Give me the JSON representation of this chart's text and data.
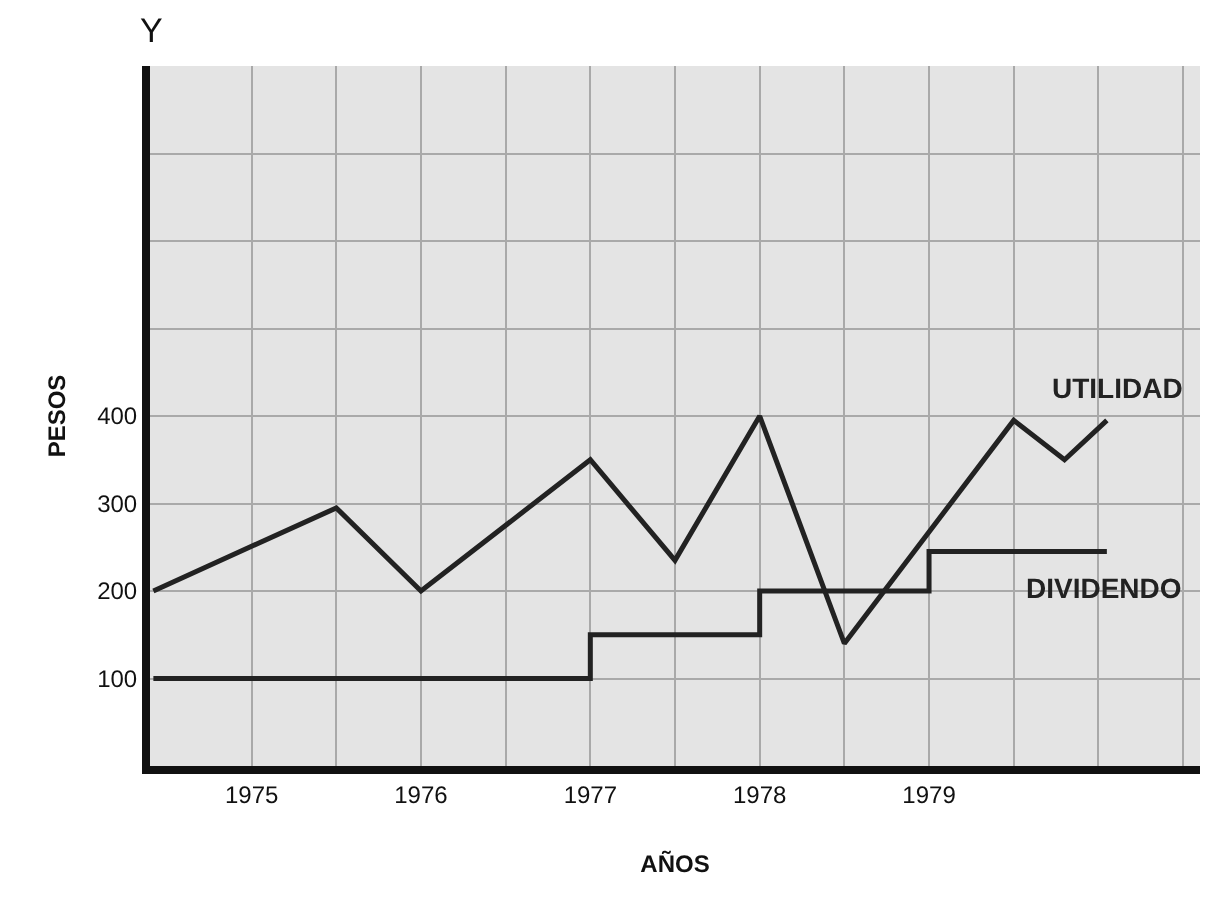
{
  "chart_data": {
    "type": "line",
    "xlabel": "AÑOS",
    "ylabel": "PESOS",
    "annotations": [
      "Y"
    ],
    "xlim": [
      1974.4,
      1980.6
    ],
    "ylim": [
      0,
      800
    ],
    "xticks": [
      {
        "value": 1975,
        "label": "1975"
      },
      {
        "value": 1975.5,
        "label": null
      },
      {
        "value": 1976,
        "label": "1976"
      },
      {
        "value": 1976.5,
        "label": null
      },
      {
        "value": 1977,
        "label": "1977"
      },
      {
        "value": 1977.5,
        "label": null
      },
      {
        "value": 1978,
        "label": "1978"
      },
      {
        "value": 1978.5,
        "label": null
      },
      {
        "value": 1979,
        "label": "1979"
      },
      {
        "value": 1979.5,
        "label": null
      },
      {
        "value": 1980,
        "label": null
      },
      {
        "value": 1980.5,
        "label": null
      }
    ],
    "yticks": [
      100,
      200,
      300,
      400,
      {
        "value": 500,
        "label": null
      },
      {
        "value": 600,
        "label": null
      },
      {
        "value": 700,
        "label": null
      }
    ],
    "grid": true,
    "legend": false,
    "marker": "none",
    "series": [
      {
        "name": "UTILIDAD",
        "color": "#222222",
        "x": [
          1974.42,
          1975.5,
          1976,
          1977,
          1977.5,
          1978,
          1978.5,
          1979.5,
          1979.8,
          1980.05
        ],
        "values": [
          200,
          295,
          200,
          350,
          235,
          400,
          140,
          395,
          350,
          395
        ]
      },
      {
        "name": "DIVIDENDO",
        "type": "step",
        "color": "#222222",
        "x": [
          1974.42,
          1977,
          1978,
          1979,
          1980.05
        ],
        "values": [
          100,
          150,
          200,
          245,
          245
        ]
      }
    ]
  }
}
